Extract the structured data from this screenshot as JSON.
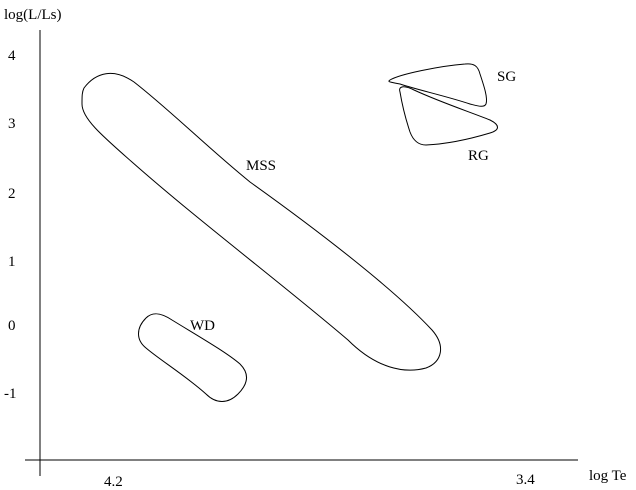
{
  "axes": {
    "x_label": "log Te",
    "y_label": "log(L/Ls)",
    "x_ticks": [
      "4.2",
      "3.4"
    ],
    "y_ticks": [
      "4",
      "3",
      "2",
      "1",
      "0",
      "-1"
    ],
    "x_reversed": true
  },
  "regions": [
    {
      "id": "mss",
      "label": "MSS"
    },
    {
      "id": "sg",
      "label": "SG"
    },
    {
      "id": "rg",
      "label": "RG"
    },
    {
      "id": "wd",
      "label": "WD"
    }
  ],
  "colors": {
    "line": "#000000",
    "background": "#ffffff"
  }
}
